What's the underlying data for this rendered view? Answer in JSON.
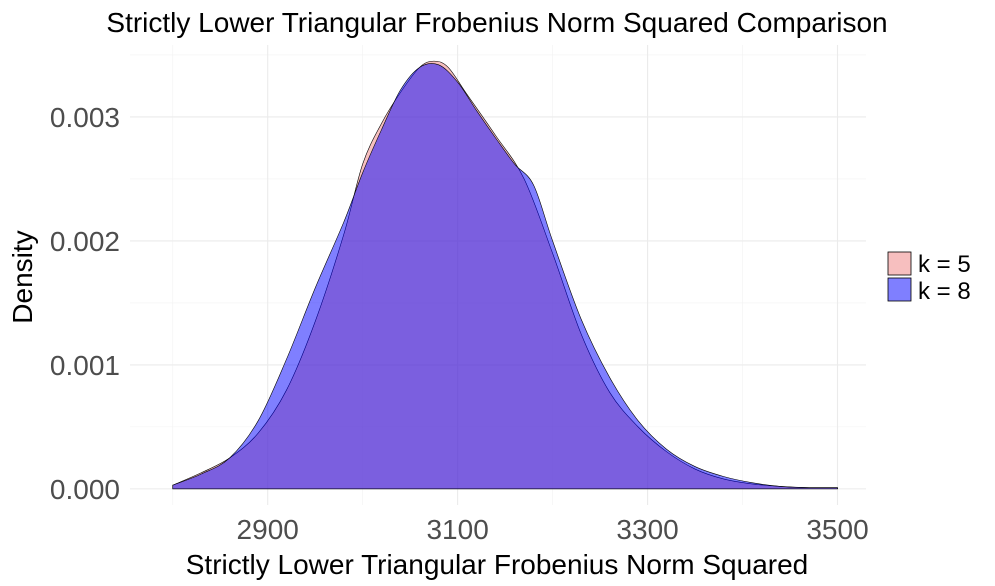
{
  "chart_data": {
    "type": "area",
    "title": "Strictly Lower Triangular Frobenius Norm Squared Comparison",
    "xlabel": "Strictly Lower Triangular Frobenius Norm Squared",
    "ylabel": "Density",
    "xlim": [
      2755,
      3530
    ],
    "ylim": [
      -0.00013,
      0.00358
    ],
    "x_ticks": [
      2900,
      3100,
      3300,
      3500
    ],
    "x_tick_labels": [
      "2900",
      "3100",
      "3300",
      "3500"
    ],
    "y_ticks": [
      0.0,
      0.001,
      0.002,
      0.003
    ],
    "y_tick_labels": [
      "0.000",
      "0.001",
      "0.002",
      "0.003"
    ],
    "grid": true,
    "legend_position": "right",
    "series": [
      {
        "name": "k = 5",
        "fill": "#f08080",
        "opacity": 0.5,
        "x": [
          2800,
          2830,
          2860,
          2890,
          2920,
          2950,
          2980,
          3000,
          3020,
          3040,
          3060,
          3075,
          3090,
          3110,
          3140,
          3170,
          3200,
          3230,
          3260,
          3290,
          3320,
          3350,
          3380,
          3410,
          3440,
          3470,
          3500
        ],
        "y": [
          3e-05,
          0.00013,
          0.00025,
          0.00045,
          0.0008,
          0.00135,
          0.00205,
          0.00262,
          0.00295,
          0.0032,
          0.0034,
          0.00345,
          0.0034,
          0.00318,
          0.00285,
          0.0025,
          0.0019,
          0.00125,
          0.00078,
          0.0005,
          0.0003,
          0.00016,
          8e-05,
          4e-05,
          2e-05,
          1e-05,
          1e-05
        ]
      },
      {
        "name": "k = 8",
        "fill": "#0000ff",
        "opacity": 0.5,
        "x": [
          2800,
          2830,
          2860,
          2890,
          2920,
          2950,
          2980,
          3000,
          3020,
          3040,
          3060,
          3080,
          3100,
          3120,
          3140,
          3160,
          3180,
          3200,
          3230,
          3260,
          3290,
          3320,
          3350,
          3380,
          3410,
          3440,
          3470,
          3500
        ],
        "y": [
          3e-05,
          0.00012,
          0.00025,
          0.00055,
          0.00105,
          0.00162,
          0.00215,
          0.00255,
          0.0029,
          0.00322,
          0.0034,
          0.00342,
          0.00328,
          0.00305,
          0.00283,
          0.00262,
          0.00245,
          0.002,
          0.00137,
          0.0009,
          0.00055,
          0.00032,
          0.00018,
          0.0001,
          5e-05,
          2e-05,
          1e-05,
          1e-05
        ]
      }
    ]
  }
}
